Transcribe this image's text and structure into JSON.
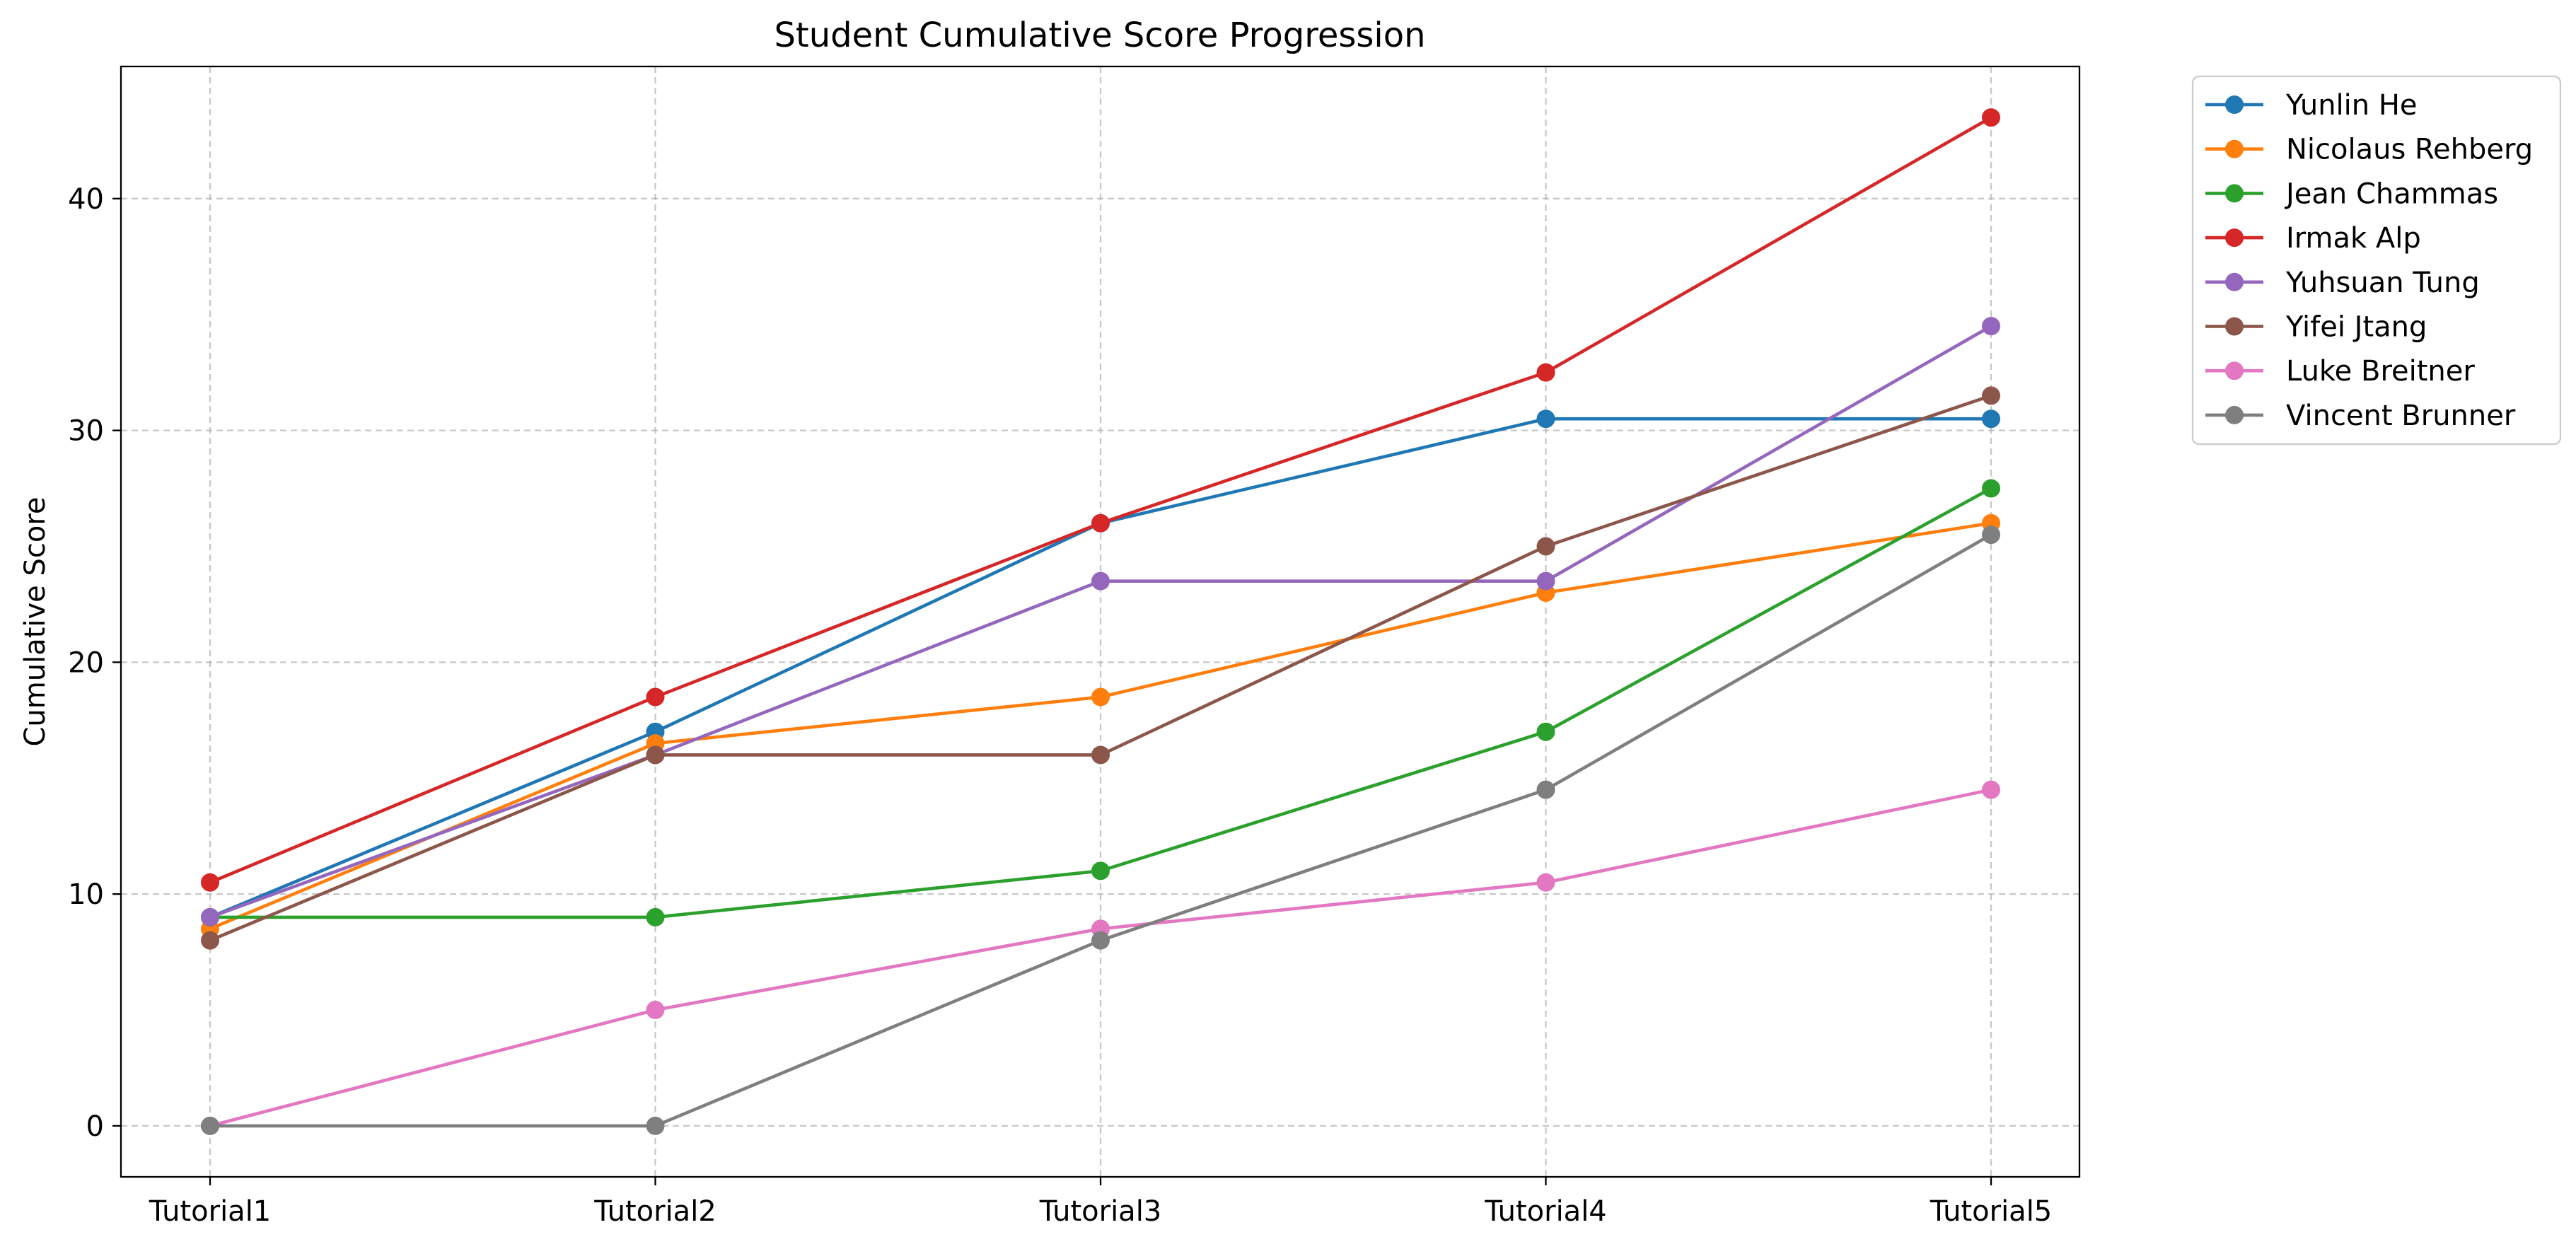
{
  "chart_data": {
    "type": "line",
    "title": "Student Cumulative Score Progression",
    "xlabel": "",
    "ylabel": "Cumulative Score",
    "categories": [
      "Tutorial1",
      "Tutorial2",
      "Tutorial3",
      "Tutorial4",
      "Tutorial5"
    ],
    "yticks": [
      0,
      10,
      20,
      30,
      40
    ],
    "ylim": [
      -2.2,
      45.7
    ],
    "grid": true,
    "legend_placement": "outside-top-right",
    "series": [
      {
        "name": "Yunlin He",
        "color": "#1f77b4",
        "values": [
          9,
          17,
          26,
          30.5,
          30.5
        ]
      },
      {
        "name": "Nicolaus Rehberg",
        "color": "#ff7f0e",
        "values": [
          8.5,
          16.5,
          18.5,
          23,
          26
        ]
      },
      {
        "name": "Jean Chammas",
        "color": "#2ca02c",
        "values": [
          9,
          9,
          11,
          17,
          27.5
        ]
      },
      {
        "name": "Irmak Alp",
        "color": "#d62728",
        "values": [
          10.5,
          18.5,
          26,
          32.5,
          43.5
        ]
      },
      {
        "name": "Yuhsuan Tung",
        "color": "#9467bd",
        "values": [
          9,
          16,
          23.5,
          23.5,
          34.5
        ]
      },
      {
        "name": "Yifei Jtang",
        "color": "#8c564b",
        "values": [
          8,
          16,
          16,
          25,
          31.5
        ]
      },
      {
        "name": "Luke Breitner",
        "color": "#e377c2",
        "values": [
          0,
          5,
          8.5,
          10.5,
          14.5
        ]
      },
      {
        "name": "Vincent Brunner",
        "color": "#7f7f7f",
        "values": [
          0,
          0,
          8,
          14.5,
          25.5
        ]
      }
    ]
  }
}
